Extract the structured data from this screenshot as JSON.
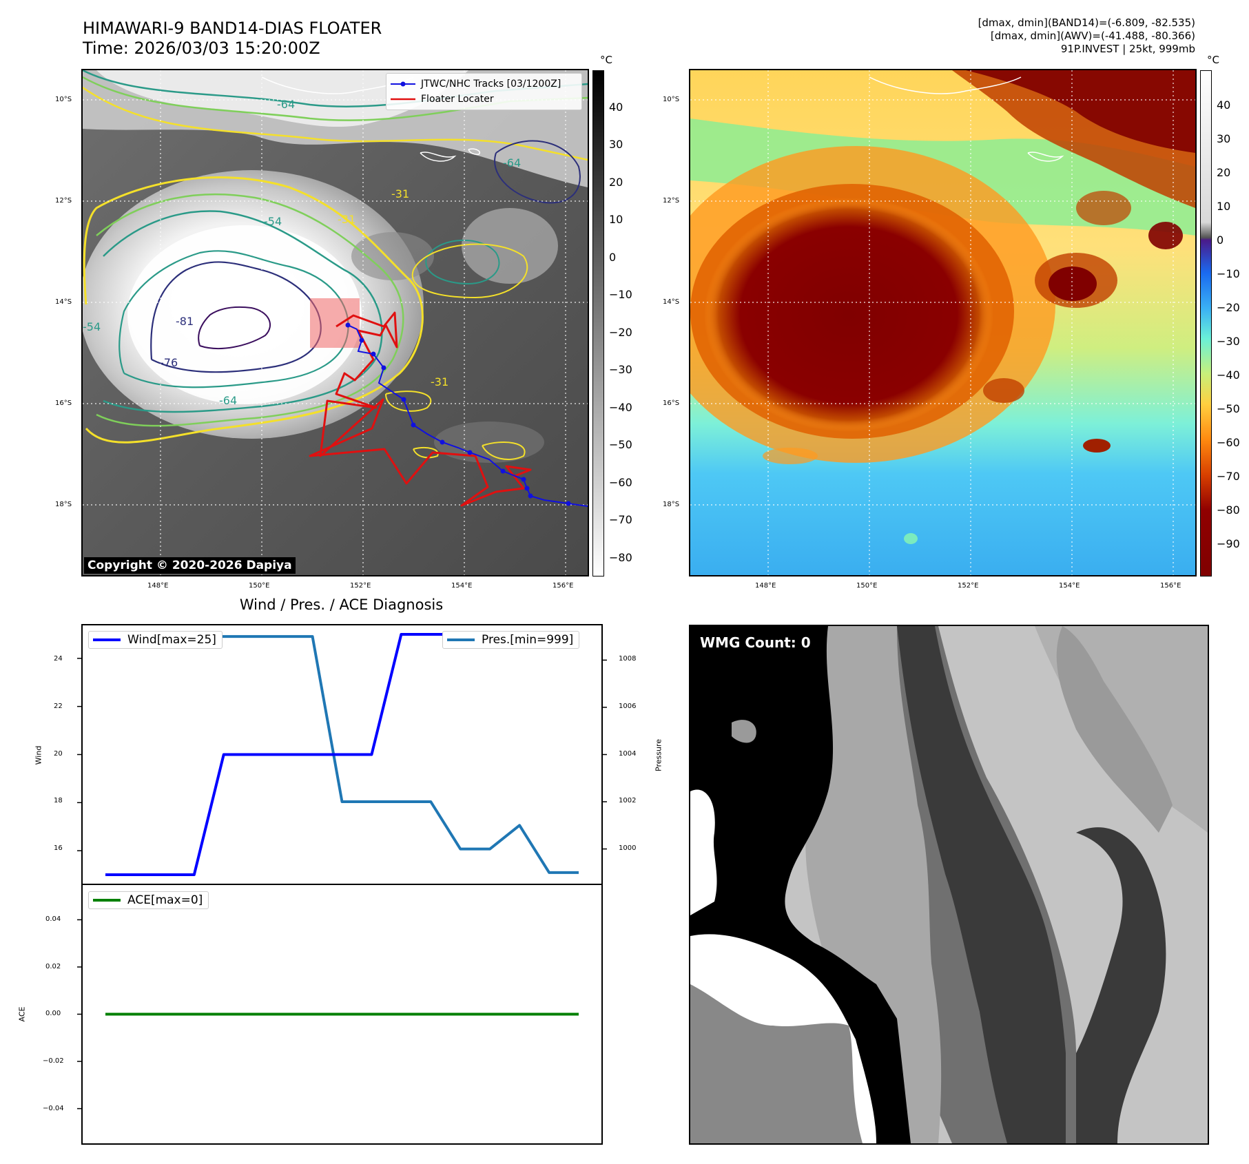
{
  "header": {
    "title_line1": "HIMAWARI-9 BAND14-DIAS FLOATER",
    "title_line2": "Time: 2026/03/03 15:20:00Z",
    "meta_line1": "[dmax, dmin](BAND14)=(-6.809, -82.535)",
    "meta_line2": "[dmax, dmin](AWV)=(-41.488, -80.366)",
    "meta_line3": "91P.INVEST | 25kt, 999mb"
  },
  "colors": {
    "track": "#1010e0",
    "floater": "#e01010",
    "wind": "#0000ff",
    "pres": "#1f77b4",
    "ace": "#008000",
    "contour_yellow": "#f4e02a",
    "contour_green": "#7fcf5a",
    "contour_teal": "#2a9a88",
    "contour_navy": "#2c2f7a",
    "contour_purple": "#3b0f5e"
  },
  "map": {
    "lat_labels": [
      "10°S",
      "12°S",
      "14°S",
      "16°S",
      "18°S"
    ],
    "lon_labels": [
      "148°E",
      "150°E",
      "152°E",
      "154°E",
      "156°E"
    ],
    "contour_labels": [
      "-64",
      "-64",
      "-54",
      "-31",
      "-31",
      "-81",
      "-76",
      "-64",
      "-31",
      "-54"
    ],
    "copyright": "Copyright © 2020-2026 Dapiya",
    "legend": {
      "tracks": "JTWC/NHC Tracks [03/1200Z]",
      "floater": "Floater Locater"
    }
  },
  "colorbar1": {
    "unit": "°C",
    "ticks": [
      "40",
      "30",
      "20",
      "10",
      "0",
      "−10",
      "−20",
      "−30",
      "−40",
      "−50",
      "−60",
      "−70",
      "−80"
    ]
  },
  "colorbar2": {
    "unit": "°C",
    "ticks": [
      "40",
      "30",
      "20",
      "10",
      "0",
      "−10",
      "−20",
      "−30",
      "−40",
      "−50",
      "−60",
      "−70",
      "−80",
      "−90"
    ]
  },
  "diagnosis": {
    "title": "Wind / Pres. / ACE Diagnosis",
    "wind_ylabel": "Wind",
    "pres_ylabel": "Pressure",
    "ace_ylabel": "ACE",
    "wind_legend": "Wind[max=25]",
    "pres_legend": "Pres.[min=999]",
    "ace_legend": "ACE[max=0]",
    "wind_ticks": [
      "24",
      "22",
      "20",
      "18",
      "16"
    ],
    "pres_ticks": [
      "1008",
      "1006",
      "1004",
      "1002",
      "1000"
    ],
    "ace_ticks": [
      "0.04",
      "0.02",
      "0.00",
      "−0.02",
      "−0.04"
    ]
  },
  "wmg": {
    "label": "WMG Count: 0"
  },
  "chart_data": [
    {
      "type": "line",
      "title": "Wind / Pres. / ACE Diagnosis",
      "ylabel": "Wind",
      "ylim": [
        14.6,
        25.4
      ],
      "series": [
        {
          "name": "Wind[max=25]",
          "x": [
            0,
            3,
            4,
            9,
            10,
            17
          ],
          "values": [
            15,
            15,
            20,
            20,
            25,
            25
          ]
        }
      ]
    },
    {
      "type": "line",
      "ylabel": "Pressure",
      "ylim": [
        998.5,
        1009.5
      ],
      "series": [
        {
          "name": "Pres.[min=999]",
          "x": [
            0,
            7,
            8,
            11,
            12,
            13,
            14,
            15,
            16
          ],
          "values": [
            1009,
            1009,
            1002,
            1002,
            1000,
            1000,
            1001,
            999,
            999
          ]
        }
      ]
    },
    {
      "type": "line",
      "ylabel": "ACE",
      "ylim": [
        -0.055,
        0.055
      ],
      "series": [
        {
          "name": "ACE[max=0]",
          "x": [
            0,
            16
          ],
          "values": [
            0,
            0
          ]
        }
      ]
    }
  ]
}
